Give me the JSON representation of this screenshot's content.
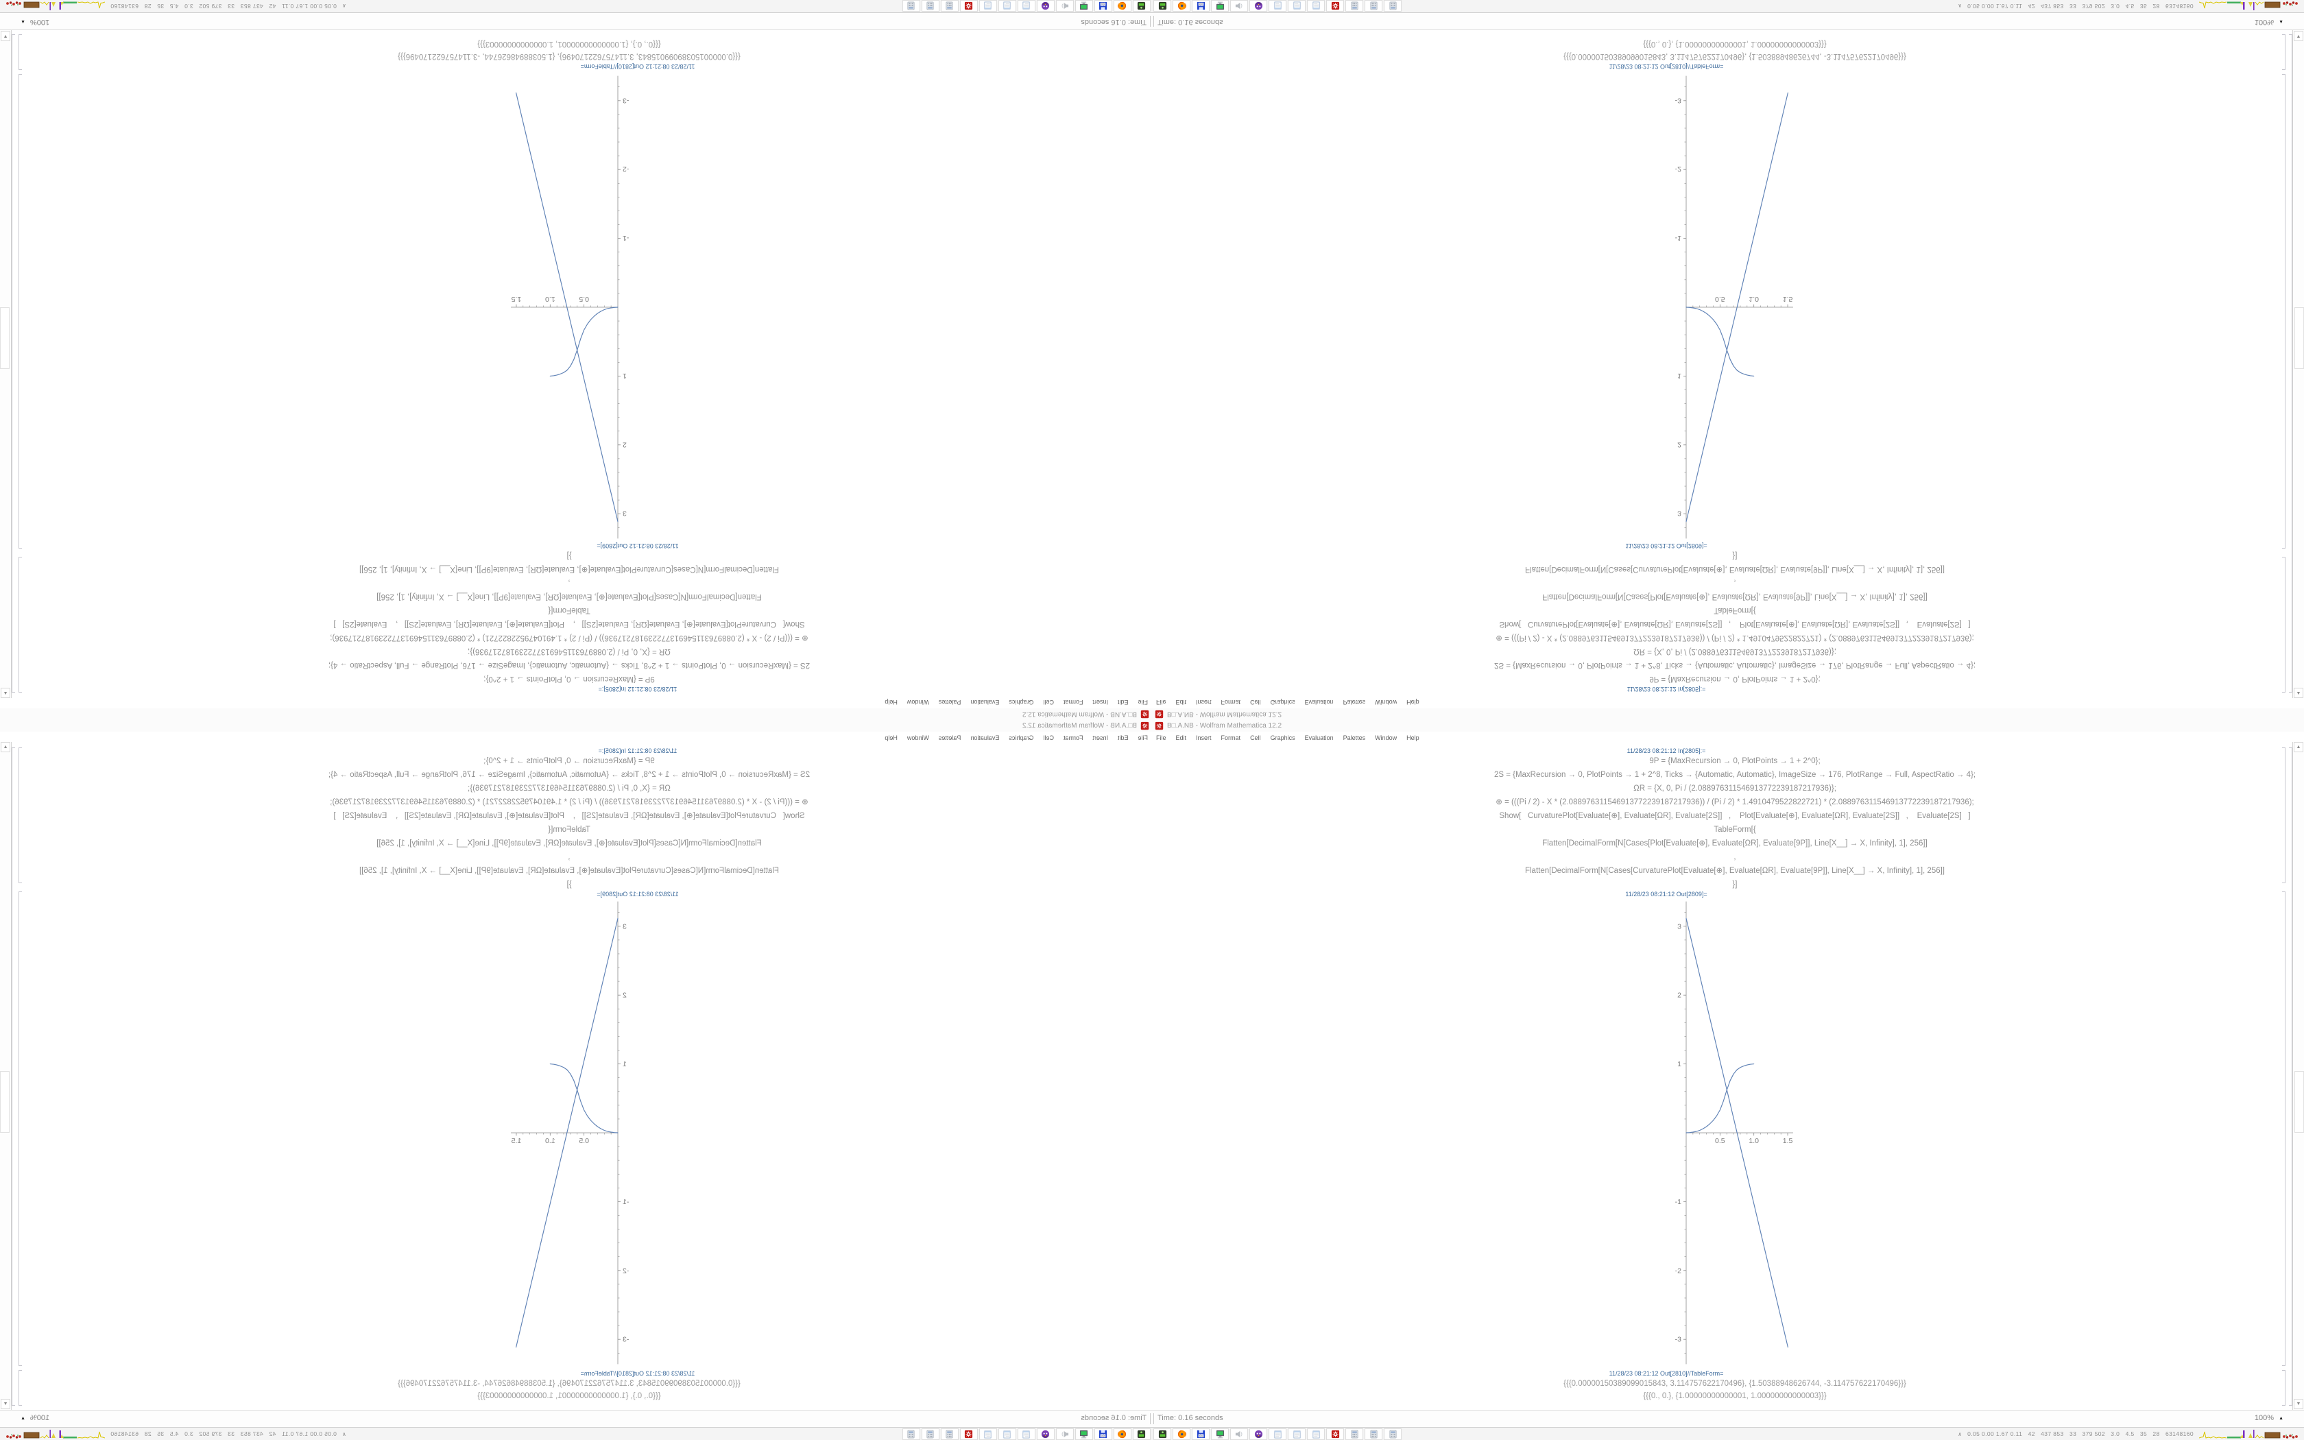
{
  "window": {
    "title": "B□.A.NB - Wolfram Mathematica 12.2",
    "menu": [
      "File",
      "Edit",
      "Insert",
      "Format",
      "Cell",
      "Graphics",
      "Evaluation",
      "Palettes",
      "Window",
      "Help"
    ],
    "status_time": "Time: 0.16 seconds",
    "magnification": "100%",
    "magnification_popup_icon": "▲",
    "scroll_up_icon": "▲",
    "scroll_down_icon": "▼"
  },
  "notebook": {
    "in_label": "11/28/23 08:21:12 In[2805]:=",
    "in_lines": [
      "9P = {MaxRecursion → 0, PlotPoints → 1 + 2^0};",
      "2S = {MaxRecursion → 0, PlotPoints → 1 + 2^8, Ticks → {Automatic, Automatic}, ImageSize → 176, PlotRange → Full, AspectRatio → 4};",
      "ΩR = {X, 0, Pi / (2.088976311546913772239187217936)};",
      "⊕ = (((Pi / 2) - X * (2.088976311546913772239187217936)) / (Pi / 2) * 1.4910479522822721) * (2.088976311546913772239187217936);",
      "Show[   CurvaturePlot[Evaluate[⊕], Evaluate[ΩR], Evaluate[2S]]   ,    Plot[Evaluate[⊕], Evaluate[ΩR], Evaluate[2S]]   ,    Evaluate[2S]   ]",
      "TableForm[{",
      "Flatten[DecimalForm[N[Cases[Plot[Evaluate[⊕], Evaluate[ΩR], Evaluate[9P]], Line[X__] → X, Infinity], 1], 256]]",
      ",",
      "Flatten[DecimalForm[N[Cases[CurvaturePlot[Evaluate[⊕], Evaluate[ΩR], Evaluate[9P]], Line[X__] → X, Infinity], 1], 256]]",
      "}]"
    ],
    "out_plot_label": "11/28/23 08:21:12 Out[2809]=",
    "out_table_label": "11/28/23 08:21:12 Out[2810]//TableForm=",
    "table_rows": [
      "{{{0.00000150389099015843, 3.114757622170496}, {1.50388948626744, -3.114757622170496}}}",
      "{{{0., 0.}, {1.00000000000001, 1.00000000000003}}}"
    ]
  },
  "chart_data": {
    "type": "line",
    "title": "",
    "xlabel": "",
    "ylabel": "",
    "xlim": [
      0,
      1.58
    ],
    "ylim": [
      -3.36,
      3.36
    ],
    "xticks": [
      0.5,
      1.0,
      1.5
    ],
    "yticks": [
      3,
      2,
      1,
      -1,
      -2,
      -3
    ],
    "grid": false,
    "legend": "none",
    "layout_note": "tall Mathematica plot, ImageSize 176, AspectRatio 4, axes cross at origin",
    "axis_color": "#8a8a8a",
    "series": [
      {
        "name": "Plot[⊕] straight line",
        "color": "#5e81b5",
        "points": [
          [
            1.5e-06,
            3.1148
          ],
          [
            1.50389,
            -3.1148
          ]
        ]
      },
      {
        "name": "CurvaturePlot[⊕] sigmoid",
        "color": "#5e81b5",
        "points": [
          [
            0,
            0
          ],
          [
            0.05,
            0.003
          ],
          [
            0.1,
            0.01
          ],
          [
            0.15,
            0.02
          ],
          [
            0.2,
            0.035
          ],
          [
            0.25,
            0.06
          ],
          [
            0.3,
            0.09
          ],
          [
            0.35,
            0.13
          ],
          [
            0.4,
            0.18
          ],
          [
            0.45,
            0.245
          ],
          [
            0.5,
            0.33
          ],
          [
            0.55,
            0.46
          ],
          [
            0.6,
            0.62
          ],
          [
            0.65,
            0.76
          ],
          [
            0.7,
            0.855
          ],
          [
            0.75,
            0.915
          ],
          [
            0.8,
            0.95
          ],
          [
            0.85,
            0.97
          ],
          [
            0.9,
            0.985
          ],
          [
            0.95,
            0.995
          ],
          [
            1.0,
            1.0
          ]
        ]
      }
    ]
  },
  "taskbar": {
    "monitor_glyph": "∧",
    "stats": "0.05 0.00 1.67 0.11   42   437 853   33   379 502   3.0   4.5   35   28   63148160",
    "buttons": [
      {
        "name": "taskbar-device-button",
        "icon": "device"
      },
      {
        "name": "taskbar-firefox-button",
        "icon": "firefox"
      },
      {
        "name": "taskbar-floppy64-button",
        "icon": "floppy"
      },
      {
        "name": "taskbar-computer-button",
        "icon": "monitor"
      },
      {
        "name": "taskbar-speaker-button",
        "icon": "speaker"
      },
      {
        "name": "taskbar-purple-face-button",
        "icon": "face"
      },
      {
        "name": "taskbar-notepad1-button",
        "icon": "notepad"
      },
      {
        "name": "taskbar-notepad2-button",
        "icon": "notepad"
      },
      {
        "name": "taskbar-notepad3-button",
        "icon": "notepad"
      },
      {
        "name": "taskbar-mathematica-button",
        "icon": "mathematica"
      },
      {
        "name": "taskbar-calculator1-button",
        "icon": "calc"
      },
      {
        "name": "taskbar-calculator2-button",
        "icon": "calc"
      },
      {
        "name": "taskbar-calculator3-button",
        "icon": "calc"
      }
    ]
  },
  "colors": {
    "accent_plot_blue": "#5e81b5",
    "cell_label_blue": "#3c6a9b",
    "mathematica_red": "#c21b17",
    "code_gray": "#8f8f8f"
  }
}
